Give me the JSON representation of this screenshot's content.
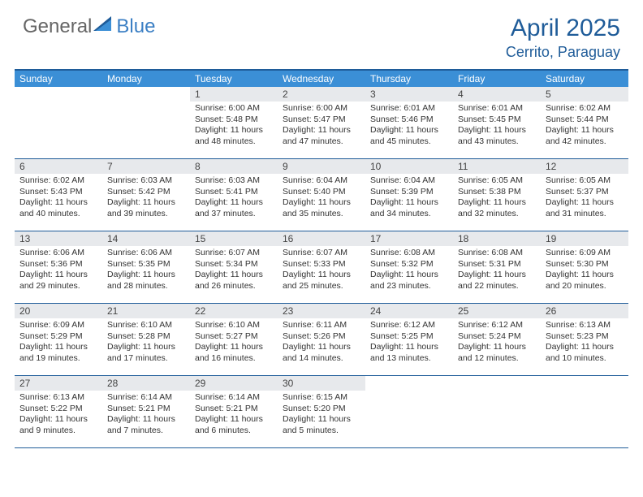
{
  "brand": {
    "word1": "General",
    "word2": "Blue"
  },
  "title": "April 2025",
  "location": "Cerrito, Paraguay",
  "colors": {
    "header_bar": "#3b8fd6",
    "accent": "#1f5c99",
    "daynum_bg": "#e7e9ec",
    "text": "#333333",
    "bg": "#ffffff"
  },
  "daysOfWeek": [
    "Sunday",
    "Monday",
    "Tuesday",
    "Wednesday",
    "Thursday",
    "Friday",
    "Saturday"
  ],
  "weeks": [
    [
      {
        "n": "",
        "lines": []
      },
      {
        "n": "",
        "lines": []
      },
      {
        "n": "1",
        "lines": [
          "Sunrise: 6:00 AM",
          "Sunset: 5:48 PM",
          "Daylight: 11 hours",
          "and 48 minutes."
        ]
      },
      {
        "n": "2",
        "lines": [
          "Sunrise: 6:00 AM",
          "Sunset: 5:47 PM",
          "Daylight: 11 hours",
          "and 47 minutes."
        ]
      },
      {
        "n": "3",
        "lines": [
          "Sunrise: 6:01 AM",
          "Sunset: 5:46 PM",
          "Daylight: 11 hours",
          "and 45 minutes."
        ]
      },
      {
        "n": "4",
        "lines": [
          "Sunrise: 6:01 AM",
          "Sunset: 5:45 PM",
          "Daylight: 11 hours",
          "and 43 minutes."
        ]
      },
      {
        "n": "5",
        "lines": [
          "Sunrise: 6:02 AM",
          "Sunset: 5:44 PM",
          "Daylight: 11 hours",
          "and 42 minutes."
        ]
      }
    ],
    [
      {
        "n": "6",
        "lines": [
          "Sunrise: 6:02 AM",
          "Sunset: 5:43 PM",
          "Daylight: 11 hours",
          "and 40 minutes."
        ]
      },
      {
        "n": "7",
        "lines": [
          "Sunrise: 6:03 AM",
          "Sunset: 5:42 PM",
          "Daylight: 11 hours",
          "and 39 minutes."
        ]
      },
      {
        "n": "8",
        "lines": [
          "Sunrise: 6:03 AM",
          "Sunset: 5:41 PM",
          "Daylight: 11 hours",
          "and 37 minutes."
        ]
      },
      {
        "n": "9",
        "lines": [
          "Sunrise: 6:04 AM",
          "Sunset: 5:40 PM",
          "Daylight: 11 hours",
          "and 35 minutes."
        ]
      },
      {
        "n": "10",
        "lines": [
          "Sunrise: 6:04 AM",
          "Sunset: 5:39 PM",
          "Daylight: 11 hours",
          "and 34 minutes."
        ]
      },
      {
        "n": "11",
        "lines": [
          "Sunrise: 6:05 AM",
          "Sunset: 5:38 PM",
          "Daylight: 11 hours",
          "and 32 minutes."
        ]
      },
      {
        "n": "12",
        "lines": [
          "Sunrise: 6:05 AM",
          "Sunset: 5:37 PM",
          "Daylight: 11 hours",
          "and 31 minutes."
        ]
      }
    ],
    [
      {
        "n": "13",
        "lines": [
          "Sunrise: 6:06 AM",
          "Sunset: 5:36 PM",
          "Daylight: 11 hours",
          "and 29 minutes."
        ]
      },
      {
        "n": "14",
        "lines": [
          "Sunrise: 6:06 AM",
          "Sunset: 5:35 PM",
          "Daylight: 11 hours",
          "and 28 minutes."
        ]
      },
      {
        "n": "15",
        "lines": [
          "Sunrise: 6:07 AM",
          "Sunset: 5:34 PM",
          "Daylight: 11 hours",
          "and 26 minutes."
        ]
      },
      {
        "n": "16",
        "lines": [
          "Sunrise: 6:07 AM",
          "Sunset: 5:33 PM",
          "Daylight: 11 hours",
          "and 25 minutes."
        ]
      },
      {
        "n": "17",
        "lines": [
          "Sunrise: 6:08 AM",
          "Sunset: 5:32 PM",
          "Daylight: 11 hours",
          "and 23 minutes."
        ]
      },
      {
        "n": "18",
        "lines": [
          "Sunrise: 6:08 AM",
          "Sunset: 5:31 PM",
          "Daylight: 11 hours",
          "and 22 minutes."
        ]
      },
      {
        "n": "19",
        "lines": [
          "Sunrise: 6:09 AM",
          "Sunset: 5:30 PM",
          "Daylight: 11 hours",
          "and 20 minutes."
        ]
      }
    ],
    [
      {
        "n": "20",
        "lines": [
          "Sunrise: 6:09 AM",
          "Sunset: 5:29 PM",
          "Daylight: 11 hours",
          "and 19 minutes."
        ]
      },
      {
        "n": "21",
        "lines": [
          "Sunrise: 6:10 AM",
          "Sunset: 5:28 PM",
          "Daylight: 11 hours",
          "and 17 minutes."
        ]
      },
      {
        "n": "22",
        "lines": [
          "Sunrise: 6:10 AM",
          "Sunset: 5:27 PM",
          "Daylight: 11 hours",
          "and 16 minutes."
        ]
      },
      {
        "n": "23",
        "lines": [
          "Sunrise: 6:11 AM",
          "Sunset: 5:26 PM",
          "Daylight: 11 hours",
          "and 14 minutes."
        ]
      },
      {
        "n": "24",
        "lines": [
          "Sunrise: 6:12 AM",
          "Sunset: 5:25 PM",
          "Daylight: 11 hours",
          "and 13 minutes."
        ]
      },
      {
        "n": "25",
        "lines": [
          "Sunrise: 6:12 AM",
          "Sunset: 5:24 PM",
          "Daylight: 11 hours",
          "and 12 minutes."
        ]
      },
      {
        "n": "26",
        "lines": [
          "Sunrise: 6:13 AM",
          "Sunset: 5:23 PM",
          "Daylight: 11 hours",
          "and 10 minutes."
        ]
      }
    ],
    [
      {
        "n": "27",
        "lines": [
          "Sunrise: 6:13 AM",
          "Sunset: 5:22 PM",
          "Daylight: 11 hours",
          "and 9 minutes."
        ]
      },
      {
        "n": "28",
        "lines": [
          "Sunrise: 6:14 AM",
          "Sunset: 5:21 PM",
          "Daylight: 11 hours",
          "and 7 minutes."
        ]
      },
      {
        "n": "29",
        "lines": [
          "Sunrise: 6:14 AM",
          "Sunset: 5:21 PM",
          "Daylight: 11 hours",
          "and 6 minutes."
        ]
      },
      {
        "n": "30",
        "lines": [
          "Sunrise: 6:15 AM",
          "Sunset: 5:20 PM",
          "Daylight: 11 hours",
          "and 5 minutes."
        ]
      },
      {
        "n": "",
        "lines": []
      },
      {
        "n": "",
        "lines": []
      },
      {
        "n": "",
        "lines": []
      }
    ]
  ]
}
